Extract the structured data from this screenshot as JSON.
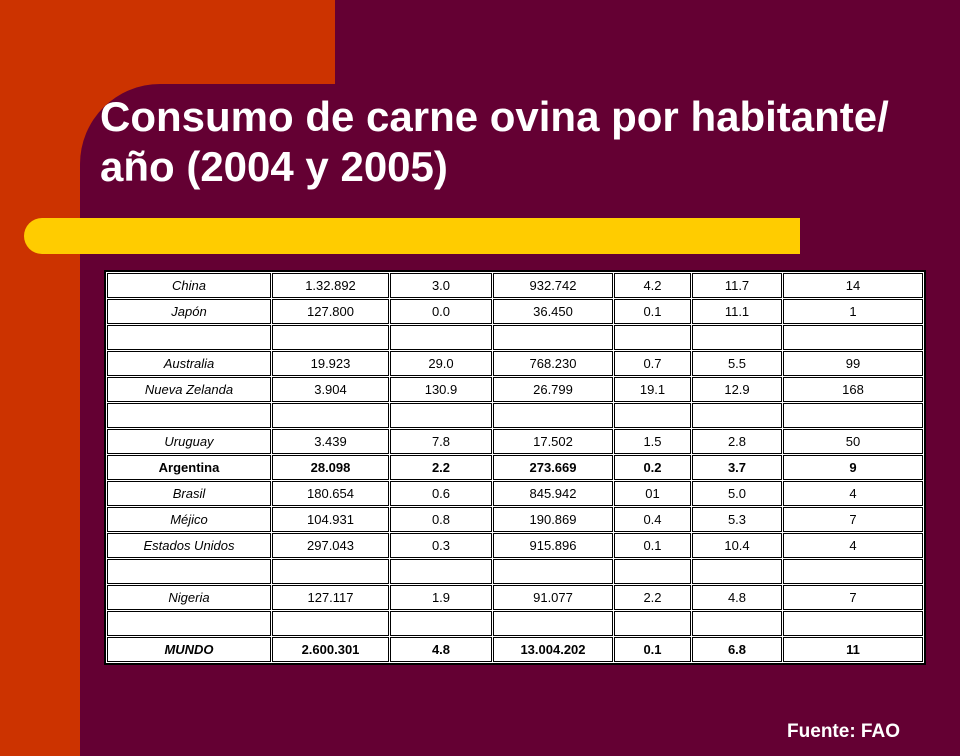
{
  "slide": {
    "title": "Consumo de carne ovina por habitante/ año (2004 y 2005)",
    "source": "Fuente: FAO"
  },
  "colors": {
    "background": "#640033",
    "accent_orange": "#cc3300",
    "accent_yellow": "#ffcc00",
    "text": "#ffffff"
  },
  "table": {
    "rows": [
      {
        "style": "normal",
        "cells": [
          "China",
          "1.32.892",
          "3.0",
          "932.742",
          "4.2",
          "11.7",
          "14"
        ]
      },
      {
        "style": "normal",
        "cells": [
          "Japón",
          "127.800",
          "0.0",
          "36.450",
          "0.1",
          "11.1",
          "1"
        ]
      },
      {
        "style": "blank",
        "cells": [
          "",
          "",
          "",
          "",
          "",
          "",
          ""
        ]
      },
      {
        "style": "normal",
        "cells": [
          "Australia",
          "19.923",
          "29.0",
          "768.230",
          "0.7",
          "5.5",
          "99"
        ]
      },
      {
        "style": "normal",
        "cells": [
          "Nueva Zelanda",
          "3.904",
          "130.9",
          "26.799",
          "19.1",
          "12.9",
          "168"
        ]
      },
      {
        "style": "blank",
        "cells": [
          "",
          "",
          "",
          "",
          "",
          "",
          ""
        ]
      },
      {
        "style": "normal",
        "cells": [
          "Uruguay",
          "3.439",
          "7.8",
          "17.502",
          "1.5",
          "2.8",
          "50"
        ]
      },
      {
        "style": "bold",
        "cells": [
          "Argentina",
          "28.098",
          "2.2",
          "273.669",
          "0.2",
          "3.7",
          "9"
        ]
      },
      {
        "style": "normal",
        "cells": [
          "Brasil",
          "180.654",
          "0.6",
          "845.942",
          "01",
          "5.0",
          "4"
        ]
      },
      {
        "style": "normal",
        "cells": [
          "Méjico",
          "104.931",
          "0.8",
          "190.869",
          "0.4",
          "5.3",
          "7"
        ]
      },
      {
        "style": "normal",
        "cells": [
          "Estados Unidos",
          "297.043",
          "0.3",
          "915.896",
          "0.1",
          "10.4",
          "4"
        ]
      },
      {
        "style": "blank",
        "cells": [
          "",
          "",
          "",
          "",
          "",
          "",
          ""
        ]
      },
      {
        "style": "normal",
        "cells": [
          "Nigeria",
          "127.117",
          "1.9",
          "91.077",
          "2.2",
          "4.8",
          "7"
        ]
      },
      {
        "style": "blank",
        "cells": [
          "",
          "",
          "",
          "",
          "",
          "",
          ""
        ]
      },
      {
        "style": "mundo",
        "cells": [
          "MUNDO",
          "2.600.301",
          "4.8",
          "13.004.202",
          "0.1",
          "6.8",
          "11"
        ]
      }
    ]
  }
}
